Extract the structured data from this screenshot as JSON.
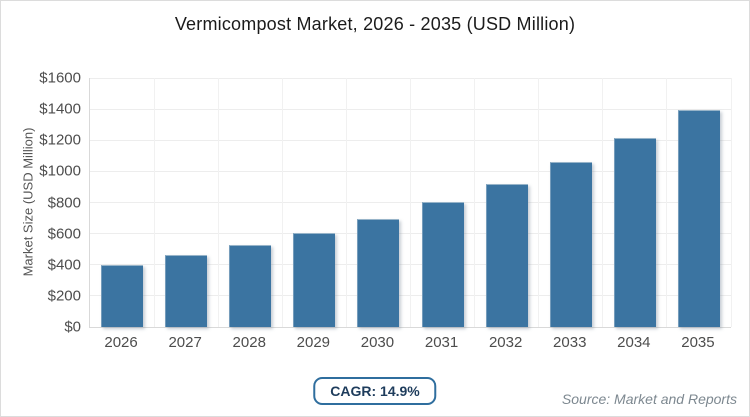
{
  "title": "Vermicompost Market, 2026 - 2035 (USD Million)",
  "chart_data": {
    "type": "bar",
    "title": "Vermicompost Market, 2026 - 2035 (USD Million)",
    "categories": [
      "2026",
      "2027",
      "2028",
      "2029",
      "2030",
      "2031",
      "2032",
      "2033",
      "2034",
      "2035"
    ],
    "values": [
      400,
      460,
      528,
      607,
      697,
      801,
      920,
      1058,
      1215,
      1396
    ],
    "xlabel": "",
    "ylabel": "Market Size (USD Million)",
    "ylim": [
      0,
      1600
    ],
    "y_tick_step": 200,
    "y_tick_prefix": "$",
    "grid": true,
    "legend_position": "none",
    "bar_color": "#3B74A1"
  },
  "footer": {
    "cagr_badge": "CAGR: 14.9%",
    "source": "Source: Market and Reports"
  },
  "colors": {
    "bar": "#3B74A1",
    "badge_border": "#2F6E9E",
    "badge_text": "#1E3C5C",
    "gridline": "#EDEDED",
    "axis": "#D9D9D9",
    "tick_text": "#4D4D4D",
    "title_text": "#1B1B1B",
    "source_text": "#7D8890"
  }
}
